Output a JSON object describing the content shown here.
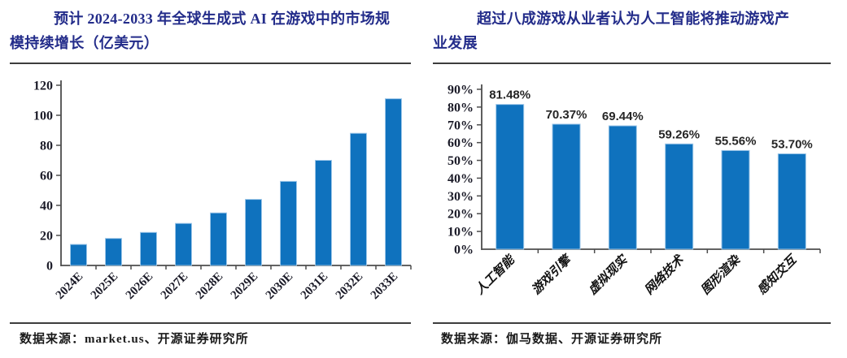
{
  "colors": {
    "bar_blue": "#0F72BE",
    "bar_border": "#9CC6E8",
    "title_navy": "#232C8A",
    "rule_gray": "#3D3D3D",
    "axis_gray": "#4D4D4D",
    "text_dark": "#1A1A1A"
  },
  "left_panel": {
    "title": "预计 2024-2033 年全球生成式 AI 在游戏中的市场规模持续增长（亿美元）",
    "source_label": "数据来源：market.us、开源证券研究所"
  },
  "right_panel": {
    "title": "超过八成游戏从业者认为人工智能将推动游戏产业发展",
    "source_label": "数据来源：伽马数据、开源证券研究所"
  },
  "chart_data": [
    {
      "type": "bar",
      "name": "genai-gaming-market",
      "title": "预计 2024-2033 年全球生成式 AI 在游戏中的市场规模持续增长（亿美元）",
      "ylabel": "亿美元",
      "categories": [
        "2024E",
        "2025E",
        "2026E",
        "2027E",
        "2028E",
        "2029E",
        "2030E",
        "2031E",
        "2032E",
        "2033E"
      ],
      "values": [
        14,
        18,
        22,
        28,
        35,
        44,
        56,
        70,
        88,
        111
      ],
      "ylim": [
        0,
        120
      ],
      "yticks": [
        0,
        20,
        40,
        60,
        80,
        100,
        120
      ],
      "ytick_labels": [
        "0",
        "20",
        "40",
        "60",
        "80",
        "100",
        "120"
      ],
      "bar_color": "#0F72BE",
      "grid": false,
      "legend": false
    },
    {
      "type": "bar",
      "name": "practitioner-ai-survey",
      "title": "超过八成游戏从业者认为人工智能将推动游戏产业发展",
      "categories": [
        "人工智能",
        "游戏引擎",
        "虚拟现实",
        "网络技术",
        "图形渲染",
        "感知交互"
      ],
      "values": [
        81.48,
        70.37,
        69.44,
        59.26,
        55.56,
        53.7
      ],
      "data_labels": [
        "81.48%",
        "70.37%",
        "69.44%",
        "59.26%",
        "55.56%",
        "53.70%"
      ],
      "ylim": [
        0,
        90
      ],
      "yticks": [
        0,
        10,
        20,
        30,
        40,
        50,
        60,
        70,
        80,
        90
      ],
      "ytick_labels": [
        "0%",
        "10%",
        "20%",
        "30%",
        "40%",
        "50%",
        "60%",
        "70%",
        "80%",
        "90%"
      ],
      "bar_color": "#0F72BE",
      "grid": false,
      "legend": false
    }
  ]
}
